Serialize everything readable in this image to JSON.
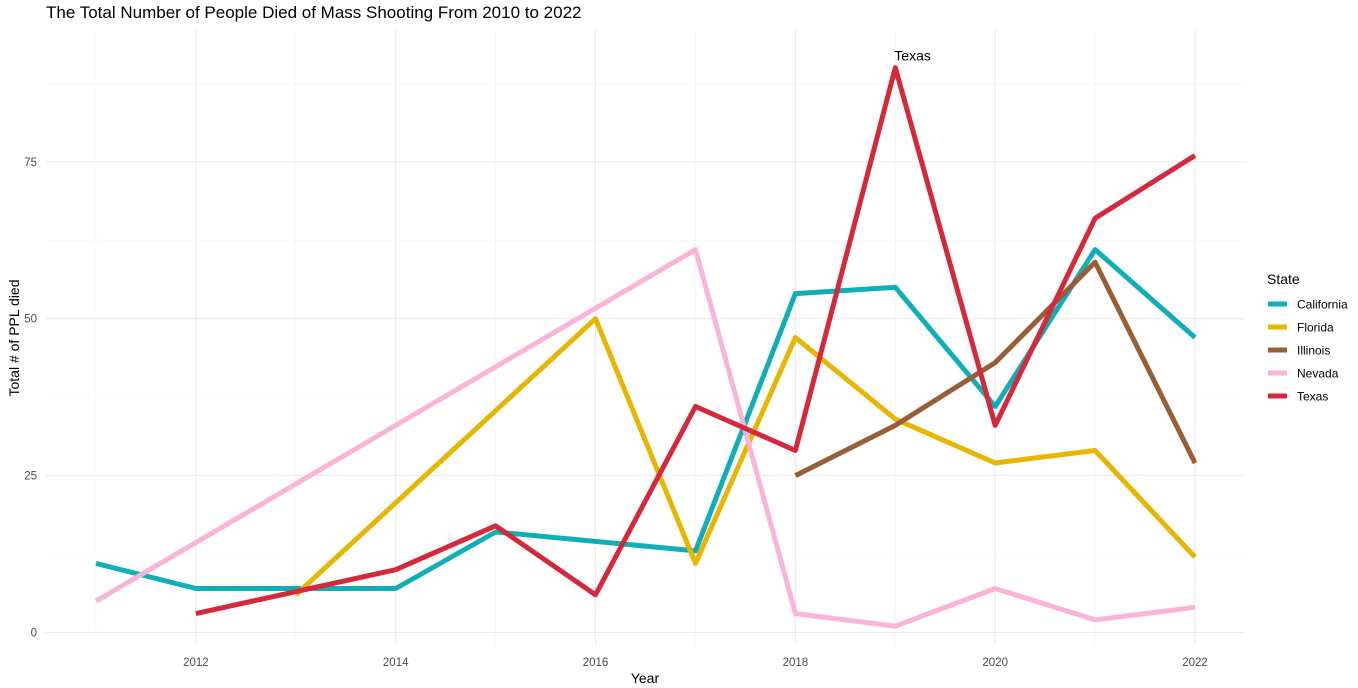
{
  "chart_data": {
    "type": "line",
    "title": "The Total Number of People Died of Mass Shooting From 2010 to 2022",
    "xlabel": "Year",
    "ylabel": "Total # of PPL died",
    "xlim": [
      2010.5,
      2022.5
    ],
    "ylim": [
      -2,
      96
    ],
    "x_ticks": [
      2012,
      2014,
      2016,
      2018,
      2020,
      2022
    ],
    "y_ticks": [
      0,
      25,
      50,
      75
    ],
    "grid": true,
    "legend": {
      "title": "State",
      "position": "right"
    },
    "series": [
      {
        "name": "California",
        "color": "#10AEB6",
        "points": [
          [
            2011,
            11
          ],
          [
            2012,
            7
          ],
          [
            2013,
            7
          ],
          [
            2014,
            7
          ],
          [
            2015,
            16
          ],
          [
            2017,
            13
          ],
          [
            2018,
            54
          ],
          [
            2019,
            55
          ],
          [
            2020,
            36
          ],
          [
            2021,
            61
          ],
          [
            2022,
            47
          ]
        ]
      },
      {
        "name": "Florida",
        "color": "#E6B600",
        "points": [
          [
            2013,
            6
          ],
          [
            2016,
            50
          ],
          [
            2017,
            11
          ],
          [
            2018,
            47
          ],
          [
            2019,
            34
          ],
          [
            2020,
            27
          ],
          [
            2021,
            29
          ],
          [
            2022,
            12
          ]
        ]
      },
      {
        "name": "Illinois",
        "color": "#9A5E37",
        "points": [
          [
            2018,
            25
          ],
          [
            2019,
            33
          ],
          [
            2020,
            43
          ],
          [
            2021,
            59
          ],
          [
            2022,
            27
          ]
        ]
      },
      {
        "name": "Nevada",
        "color": "#F9B4D7",
        "points": [
          [
            2011,
            5
          ],
          [
            2017,
            61
          ],
          [
            2018,
            3
          ],
          [
            2019,
            1
          ],
          [
            2020,
            7
          ],
          [
            2021,
            2
          ],
          [
            2022,
            4
          ]
        ]
      },
      {
        "name": "Texas",
        "color": "#D5283A",
        "points": [
          [
            2012,
            3
          ],
          [
            2014,
            10
          ],
          [
            2015,
            17
          ],
          [
            2016,
            6
          ],
          [
            2017,
            36
          ],
          [
            2018,
            29
          ],
          [
            2019,
            90
          ],
          [
            2020,
            33
          ],
          [
            2021,
            66
          ],
          [
            2022,
            76
          ]
        ]
      }
    ],
    "annotations": [
      {
        "text": "Texas",
        "x": 2019,
        "y": 90
      }
    ]
  }
}
